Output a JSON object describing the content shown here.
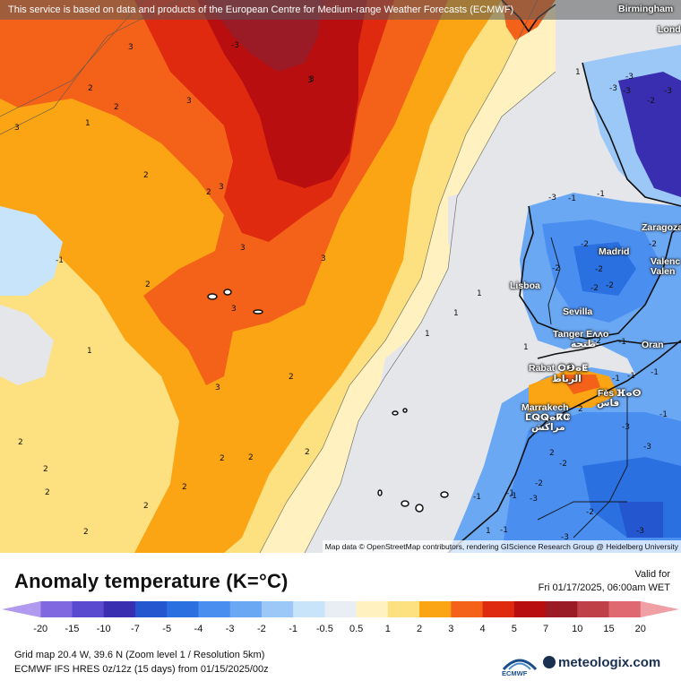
{
  "banner": "This service is based on data and products of the European Centre for Medium-range Weather Forecasts (ECMWF)",
  "attribution": "Map data © OpenStreetMap contributors, rendering GIScience Research Group @ Heidelberg University",
  "cities": [
    {
      "name": "Birmingham"
    },
    {
      "name": "Lond"
    },
    {
      "name": "Zaragoza"
    },
    {
      "name": "Madrid"
    },
    {
      "name": "Valenc"
    },
    {
      "name": "Valen"
    },
    {
      "name": "Lisboa"
    },
    {
      "name": "Sevilla"
    },
    {
      "name": "Tanger Еᴧᴧo"
    },
    {
      "name": "طنجة"
    },
    {
      "name": "Oran"
    },
    {
      "name": "Rabat ⵔⴱⴰⵟ"
    },
    {
      "name": "الرباط"
    },
    {
      "name": "Fès ⴼⴰⵙ"
    },
    {
      "name": "فاس"
    },
    {
      "name": "Marrakech"
    },
    {
      "name": "ⵎⵕⵕⴰⴽⵛ"
    },
    {
      "name": "مراكش"
    }
  ],
  "contour_labels": [
    "3",
    "3",
    "-3",
    "2",
    "3",
    "1",
    "3",
    "2",
    "3",
    "2",
    "3",
    "3",
    "3",
    "3",
    "2",
    "2",
    "-1",
    "3",
    "1",
    "2",
    "2",
    "2",
    "1",
    "2",
    "1",
    "2",
    "2",
    "2",
    "2",
    "2",
    "2",
    "1",
    "-1",
    "1",
    "-1",
    "-3",
    "-2",
    "-3",
    "-1",
    "1",
    "-2",
    "-3",
    "-1",
    "-3",
    "-2",
    "-2",
    "-1",
    "-2",
    "-3",
    "-1",
    "-3",
    "-2",
    "-3",
    "-1",
    "-1",
    "-2",
    "-3",
    "-2",
    "-1",
    "-2",
    "-3",
    "-3",
    "-2",
    "2",
    "2",
    "1",
    "-1",
    "-1",
    "-2",
    "-3"
  ],
  "legend": {
    "title": "Anomaly temperature (K=°C)",
    "valid_label": "Valid for",
    "valid_time": "Fri 01/17/2025, 06:00am WET",
    "ticks": [
      "-20",
      "-15",
      "-10",
      "-7",
      "-5",
      "-4",
      "-3",
      "-2",
      "-1",
      "-0.5",
      "0.5",
      "1",
      "2",
      "3",
      "4",
      "5",
      "7",
      "10",
      "15",
      "20"
    ],
    "colors": [
      "#b09af0",
      "#7f68e0",
      "#5a4ad0",
      "#3a2eb0",
      "#2456d0",
      "#2a70e0",
      "#4a8ef0",
      "#6aa8f4",
      "#9cc8f8",
      "#c8e4fa",
      "#e8eef4",
      "#fff2c0",
      "#fde080",
      "#fba414",
      "#f4621a",
      "#e02a10",
      "#b80e10",
      "#9a1a26",
      "#c04048",
      "#e06870",
      "#f0a0a4"
    ],
    "grid_info": "Grid map 20.4 W, 39.6 N (Zoom level 1 / Resolution 5km)",
    "model_info": "ECMWF IFS HRES 0z/12z (15 days) from  01/15/2025/00z",
    "ecmwf_logo_text": "ECMWF",
    "brand": "meteologix.com"
  }
}
